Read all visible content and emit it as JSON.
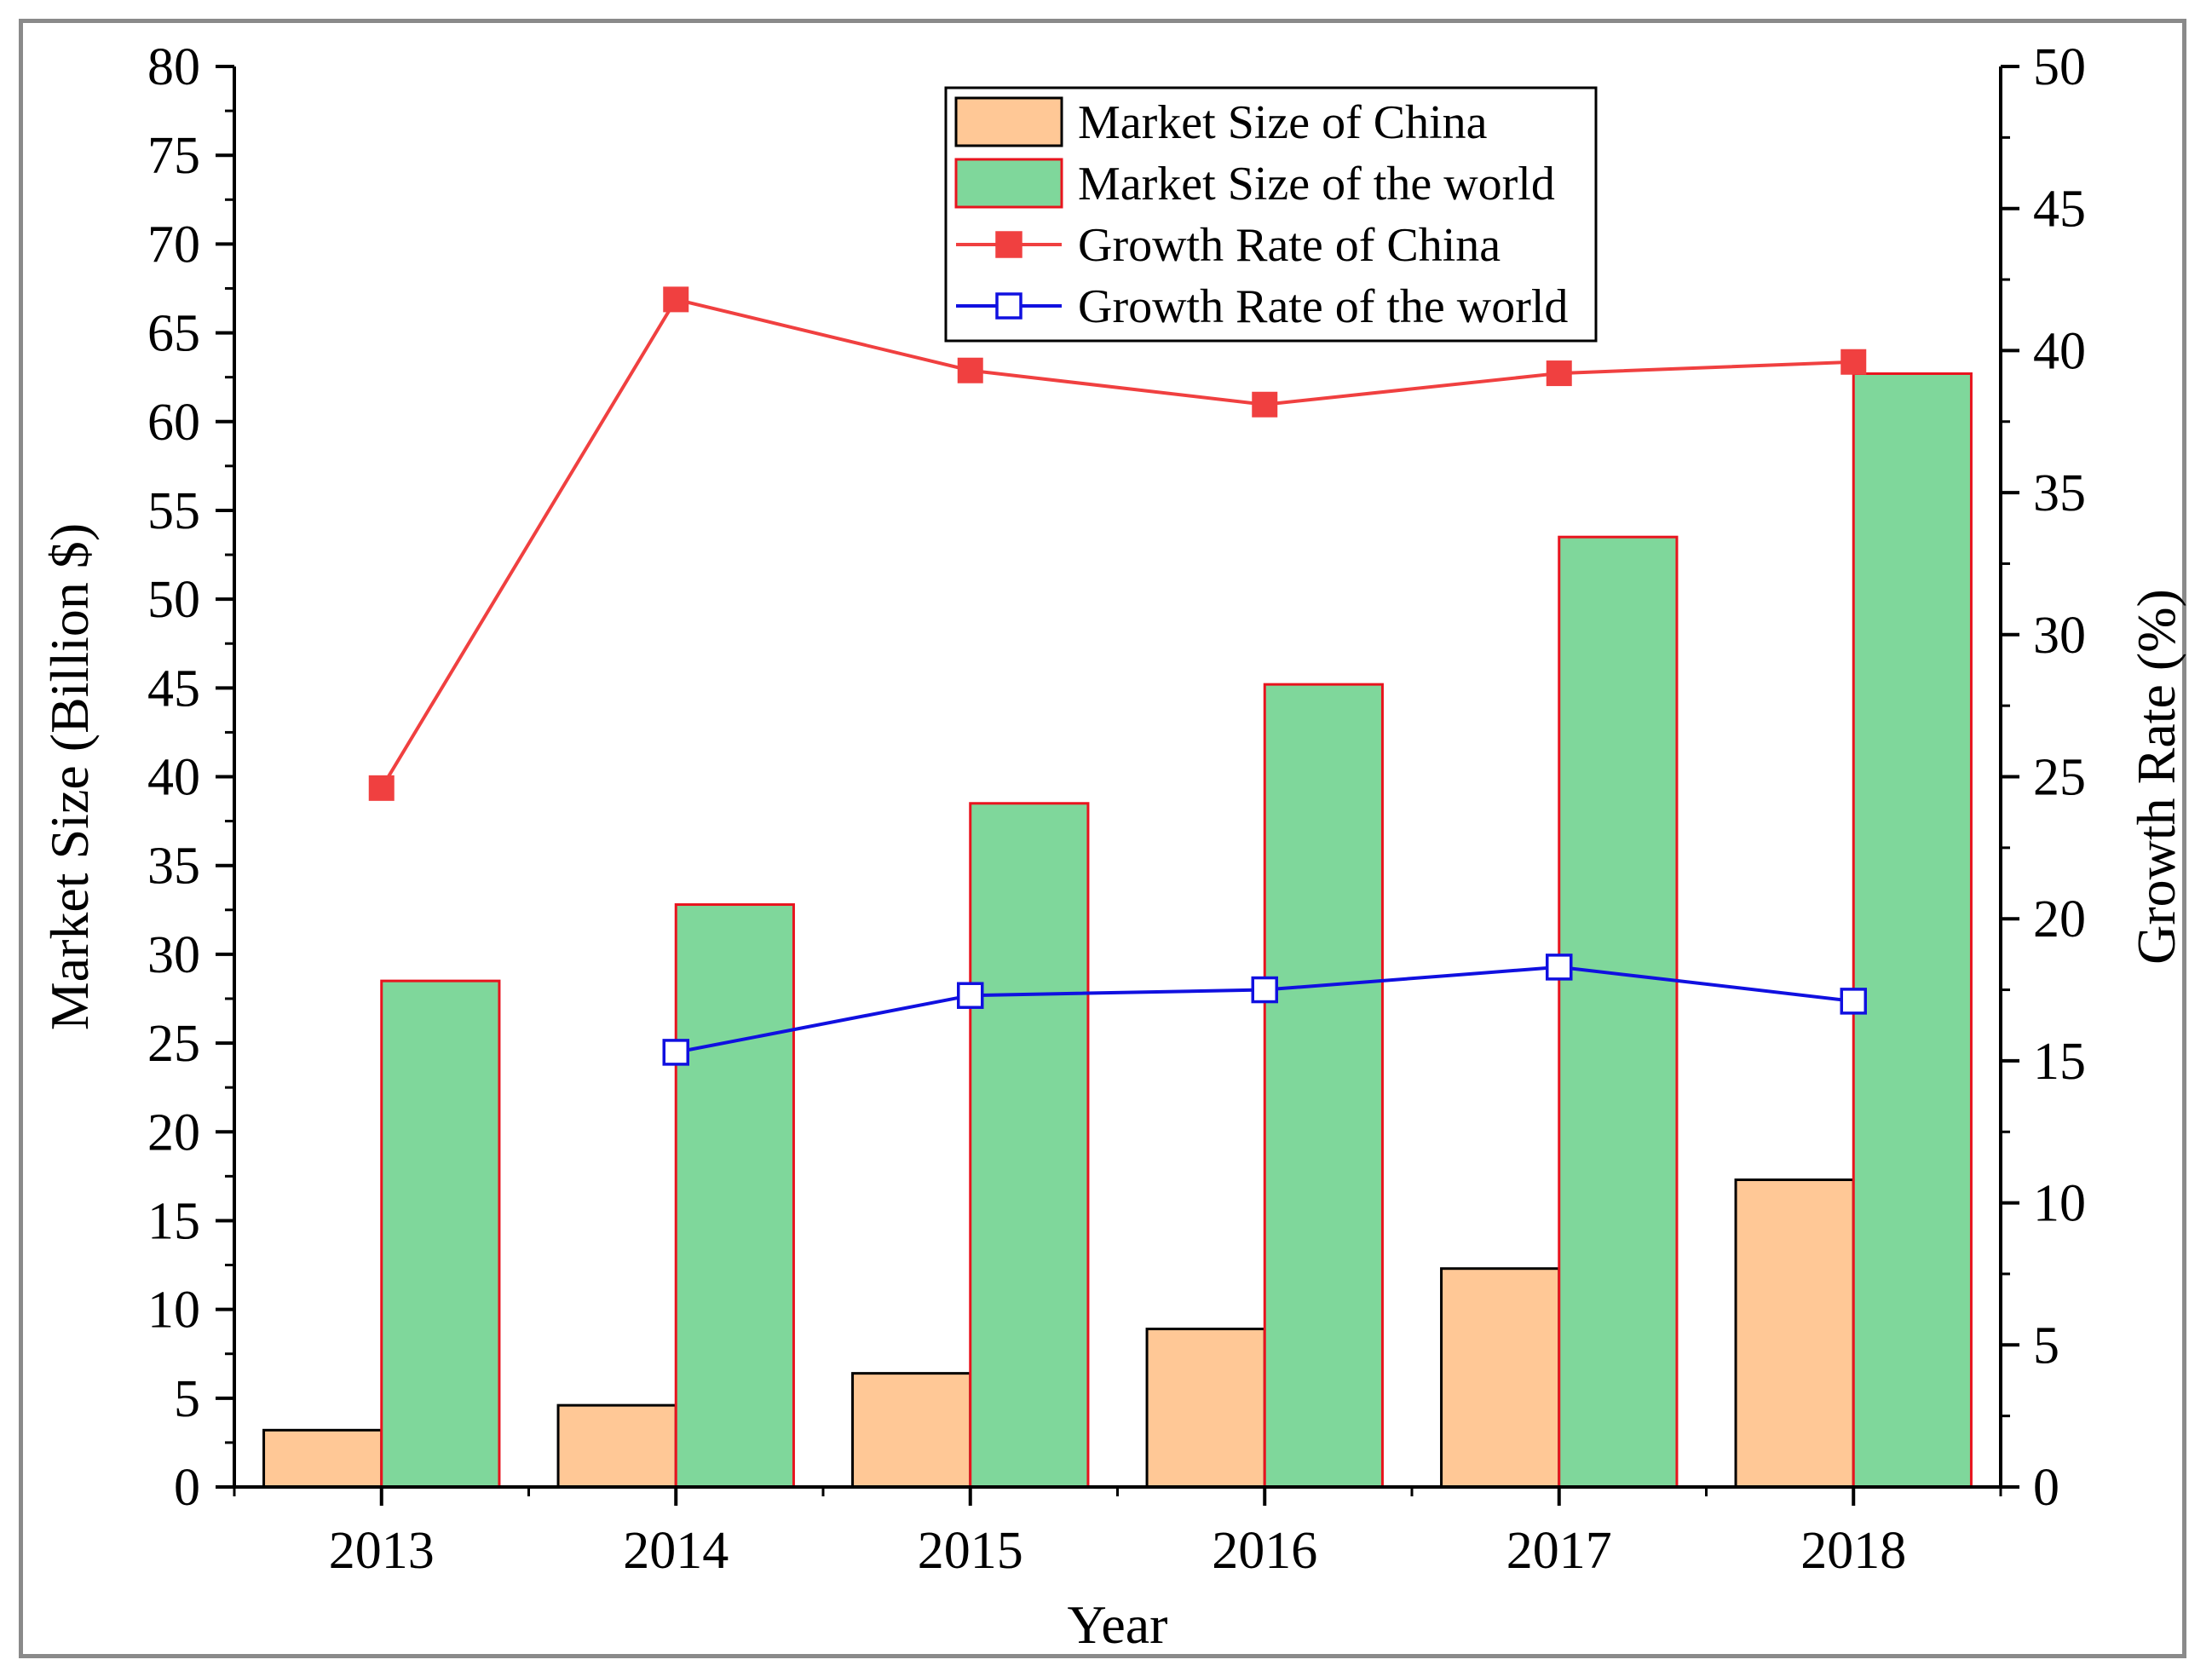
{
  "chart_data": {
    "type": "bar+line",
    "categories": [
      "2013",
      "2014",
      "2015",
      "2016",
      "2017",
      "2018"
    ],
    "xlabel": "Year",
    "ylabel": "Market Size (Billion $)",
    "y2label": "Growth Rate (%)",
    "ylim": [
      0,
      80
    ],
    "y2lim": [
      0,
      50
    ],
    "y_ticks": [
      "0",
      "5",
      "10",
      "15",
      "20",
      "25",
      "30",
      "35",
      "40",
      "45",
      "50",
      "55",
      "60",
      "65",
      "70",
      "75",
      "80"
    ],
    "y2_ticks": [
      "0",
      "5",
      "10",
      "15",
      "20",
      "25",
      "30",
      "35",
      "40",
      "45",
      "50"
    ],
    "bar_series": [
      {
        "name": "Market Size of China",
        "values": [
          3.2,
          4.6,
          6.4,
          8.9,
          12.3,
          17.3
        ],
        "fill": "#FFC896",
        "stroke": "#000000"
      },
      {
        "name": "Market Size of the world",
        "values": [
          28.5,
          32.8,
          38.5,
          45.2,
          53.5,
          62.7
        ],
        "fill": "#7FD79B",
        "stroke": "#E8141E"
      }
    ],
    "line_series": [
      {
        "name": "Growth Rate of China",
        "values": [
          24.6,
          41.8,
          39.3,
          38.1,
          39.2,
          39.6
        ],
        "color": "#F04040",
        "marker": "filled-square"
      },
      {
        "name": "Growth Rate of the world",
        "values": [
          null,
          15.3,
          17.3,
          17.5,
          18.3,
          17.1
        ],
        "color": "#1010E0",
        "marker": "open-square"
      }
    ],
    "legend_position": "top-center"
  }
}
